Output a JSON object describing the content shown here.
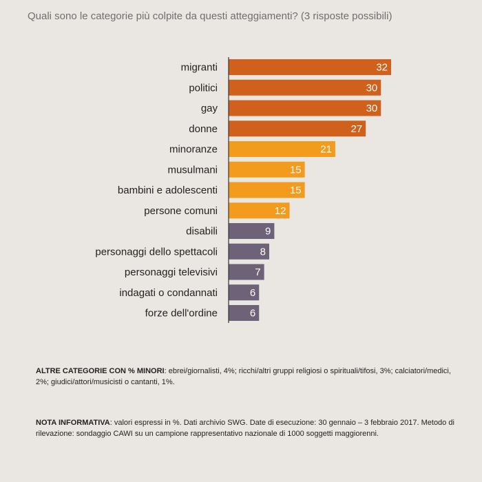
{
  "title": "Quali sono le categorie più colpite da questi atteggiamenti? (3 risposte possibili)",
  "colors": {
    "background": "#eae6e1",
    "high": "#d0611c",
    "mid": "#f39b1c",
    "low": "#6e6279",
    "axis": "#333333"
  },
  "chart_data": {
    "type": "bar",
    "orientation": "horizontal",
    "title": "Quali sono le categorie più colpite da questi atteggiamenti? (3 risposte possibili)",
    "categories": [
      "migranti",
      "politici",
      "gay",
      "donne",
      "minoranze",
      "musulmani",
      "bambini e adolescenti",
      "persone comuni",
      "disabili",
      "personaggi dello spettacoli",
      "personaggi televisivi",
      "indagati o condannati",
      "forze dell'ordine"
    ],
    "values": [
      32,
      30,
      30,
      27,
      21,
      15,
      15,
      12,
      9,
      8,
      7,
      6,
      6
    ],
    "color_groups": [
      "high",
      "high",
      "high",
      "high",
      "mid",
      "mid",
      "mid",
      "mid",
      "low",
      "low",
      "low",
      "low",
      "low"
    ],
    "xlim": [
      0,
      32
    ],
    "grid": false,
    "legend": "none"
  },
  "notes": {
    "other_label": "ALTRE CATEGORIE CON % MINORI",
    "other_text": ": ebrei/giornalisti, 4%; ricchi/altri gruppi religiosi o spirituali/tifosi, 3%; calciatori/medici, 2%; giudici/attori/musicisti o cantanti, 1%.",
    "info_label": "NOTA INFORMATIVA",
    "info_text": ": valori espressi in %. Dati archivio SWG. Date di esecuzione: 30 gennaio – 3 febbraio 2017. Metodo di rilevazione: sondaggio CAWI su un campione rappresentativo nazionale di 1000 soggetti maggiorenni."
  }
}
